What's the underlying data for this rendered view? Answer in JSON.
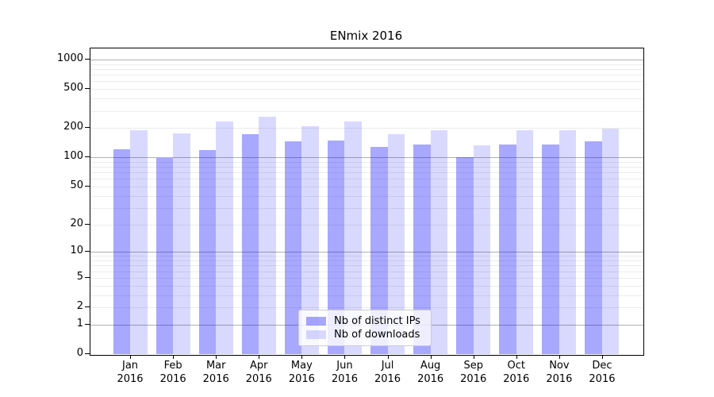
{
  "chart_data": {
    "type": "bar",
    "title": "ENmix 2016",
    "categories": [
      "Jan 2016",
      "Feb 2016",
      "Mar 2016",
      "Apr 2016",
      "May 2016",
      "Jun 2016",
      "Jul 2016",
      "Aug 2016",
      "Sep 2016",
      "Oct 2016",
      "Nov 2016",
      "Dec 2016"
    ],
    "series": [
      {
        "name": "Nb of distinct IPs",
        "color": "rgba(0,0,255,0.34)",
        "values": [
          118,
          97,
          116,
          171,
          143,
          146,
          125,
          132,
          98,
          133,
          133,
          143
        ]
      },
      {
        "name": "Nb of downloads",
        "color": "rgba(0,0,255,0.15)",
        "values": [
          186,
          173,
          230,
          255,
          205,
          227,
          171,
          186,
          130,
          188,
          188,
          193
        ]
      }
    ],
    "xlabel": "",
    "ylabel": "",
    "yscale": "log1p",
    "yticks": [
      0,
      1,
      2,
      5,
      10,
      20,
      50,
      100,
      200,
      500,
      1000
    ],
    "ylim": [
      0,
      1300
    ],
    "grid": "both",
    "legend_position": "lower center",
    "colors": {
      "grid_major": "#b0b0b0",
      "grid_minor": "#ececec",
      "spine": "#000000",
      "legend_border": "#cccccc"
    }
  }
}
